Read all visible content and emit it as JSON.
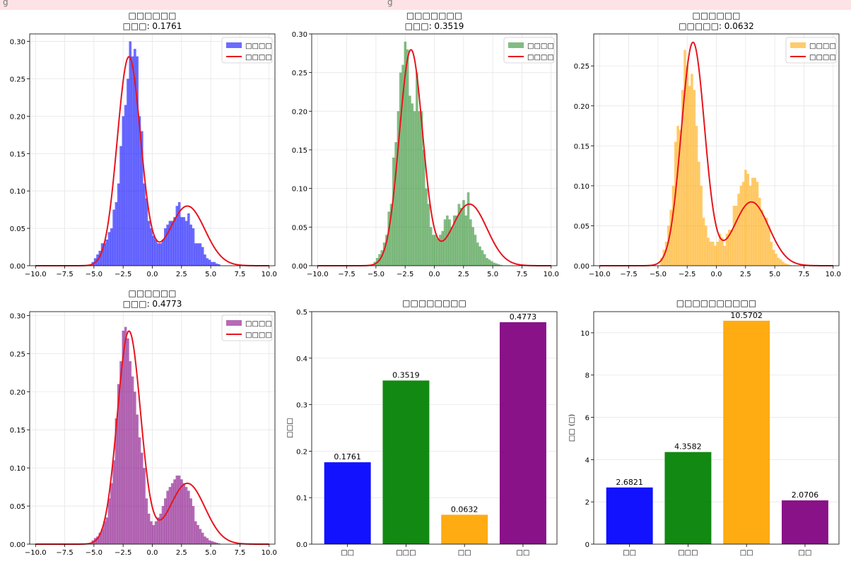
{
  "banner": {
    "left": "g",
    "right": "g"
  },
  "chart_data": [
    {
      "type": "histogram",
      "title": "□□□□□□",
      "subtitle": "□□□: 0.1761",
      "hist_color": "#0000ff",
      "hist_label": "□□□□",
      "pdf_label": "□□□□",
      "line_color": "#e8141e",
      "xlim": [
        -10.5,
        10.5
      ],
      "ylim": [
        0,
        0.31
      ],
      "xticks": [
        -10,
        -7.5,
        -5,
        -2.5,
        0,
        2.5,
        5,
        7.5,
        10
      ],
      "xtick_labels": [
        "−10.0",
        "−7.5",
        "−5.0",
        "−2.5",
        "0.0",
        "2.5",
        "5.0",
        "7.5",
        "10.0"
      ],
      "yticks": [
        0,
        0.05,
        0.1,
        0.15,
        0.2,
        0.25,
        0.3
      ],
      "ytick_labels": [
        "0.00",
        "0.05",
        "0.10",
        "0.15",
        "0.20",
        "0.25",
        "0.30"
      ],
      "bin_start": -5.2,
      "bin_width": 0.2,
      "values": [
        0.005,
        0.01,
        0.015,
        0.02,
        0.03,
        0.03,
        0.035,
        0.045,
        0.05,
        0.075,
        0.085,
        0.11,
        0.16,
        0.2,
        0.215,
        0.25,
        0.3,
        0.28,
        0.29,
        0.28,
        0.2,
        0.18,
        0.11,
        0.09,
        0.06,
        0.05,
        0.04,
        0.035,
        0.03,
        0.03,
        0.035,
        0.05,
        0.055,
        0.06,
        0.06,
        0.065,
        0.08,
        0.085,
        0.065,
        0.065,
        0.06,
        0.07,
        0.055,
        0.05,
        0.03,
        0.03,
        0.03,
        0.025,
        0.015,
        0.01,
        0.008,
        0.005,
        0.005,
        0.003,
        0.002
      ]
    },
    {
      "type": "histogram",
      "title": "□□□□□□□",
      "subtitle": "□□□: 0.3519",
      "hist_color": "#2a8c2a",
      "hist_label": "□□□□",
      "pdf_label": "□□□□",
      "line_color": "#e8141e",
      "xlim": [
        -10.5,
        10.5
      ],
      "ylim": [
        0,
        0.3
      ],
      "xticks": [
        -10,
        -7.5,
        -5,
        -2.5,
        0,
        2.5,
        5,
        7.5,
        10
      ],
      "xtick_labels": [
        "−10.0",
        "−7.5",
        "−5.0",
        "−2.5",
        "0.0",
        "2.5",
        "5.0",
        "7.5",
        "10.0"
      ],
      "yticks": [
        0,
        0.05,
        0.1,
        0.15,
        0.2,
        0.25,
        0.3
      ],
      "ytick_labels": [
        "0.00",
        "0.05",
        "0.10",
        "0.15",
        "0.20",
        "0.25",
        "0.30"
      ],
      "bin_start": -5.2,
      "bin_width": 0.2,
      "values": [
        0.005,
        0.01,
        0.015,
        0.02,
        0.03,
        0.04,
        0.07,
        0.08,
        0.14,
        0.16,
        0.2,
        0.25,
        0.26,
        0.29,
        0.28,
        0.22,
        0.21,
        0.2,
        0.25,
        0.2,
        0.2,
        0.15,
        0.1,
        0.08,
        0.05,
        0.04,
        0.04,
        0.035,
        0.04,
        0.045,
        0.06,
        0.065,
        0.06,
        0.05,
        0.065,
        0.065,
        0.08,
        0.075,
        0.085,
        0.065,
        0.095,
        0.06,
        0.05,
        0.04,
        0.03,
        0.025,
        0.02,
        0.015,
        0.01,
        0.008,
        0.006,
        0.004,
        0.003,
        0.002,
        0.001
      ]
    },
    {
      "type": "histogram",
      "title": "□□□□□□",
      "subtitle": "□□□□□: 0.0632",
      "hist_color": "#ffa500",
      "hist_label": "□□□□",
      "pdf_label": "□□□□",
      "line_color": "#e8141e",
      "xlim": [
        -10.5,
        10.5
      ],
      "ylim": [
        0,
        0.29
      ],
      "xticks": [
        -10,
        -7.5,
        -5,
        -2.5,
        0,
        2.5,
        5,
        7.5,
        10
      ],
      "xtick_labels": [
        "−10.0",
        "−7.5",
        "−5.0",
        "−2.5",
        "0.0",
        "2.5",
        "5.0",
        "7.5",
        "10.0"
      ],
      "yticks": [
        0,
        0.05,
        0.1,
        0.15,
        0.2,
        0.25
      ],
      "ytick_labels": [
        "0.00",
        "0.05",
        "0.10",
        "0.15",
        "0.20",
        "0.25"
      ],
      "bin_start": -4.8,
      "bin_width": 0.2,
      "values": [
        0.01,
        0.02,
        0.03,
        0.05,
        0.07,
        0.1,
        0.155,
        0.175,
        0.17,
        0.22,
        0.27,
        0.25,
        0.225,
        0.24,
        0.22,
        0.175,
        0.13,
        0.1,
        0.06,
        0.05,
        0.035,
        0.03,
        0.03,
        0.025,
        0.03,
        0.04,
        0.035,
        0.025,
        0.04,
        0.045,
        0.045,
        0.075,
        0.075,
        0.09,
        0.1,
        0.105,
        0.12,
        0.115,
        0.1,
        0.11,
        0.11,
        0.105,
        0.085,
        0.07,
        0.06,
        0.06,
        0.05,
        0.03,
        0.02,
        0.015,
        0.01,
        0.008,
        0.005,
        0.003,
        0.002,
        0.001
      ]
    },
    {
      "type": "histogram",
      "title": "□□□□□□",
      "subtitle": "□□□: 0.4773",
      "hist_color": "#800080",
      "hist_label": "□□□□",
      "pdf_label": "□□□□",
      "line_color": "#e8141e",
      "xlim": [
        -10.5,
        10.5
      ],
      "ylim": [
        0,
        0.305
      ],
      "xticks": [
        -10,
        -7.5,
        -5,
        -2.5,
        0,
        2.5,
        5,
        7.5,
        10
      ],
      "xtick_labels": [
        "−10.0",
        "−7.5",
        "−5.0",
        "−2.5",
        "0.0",
        "2.5",
        "5.0",
        "7.5",
        "10.0"
      ],
      "yticks": [
        0,
        0.05,
        0.1,
        0.15,
        0.2,
        0.25,
        0.3
      ],
      "ytick_labels": [
        "0.00",
        "0.05",
        "0.10",
        "0.15",
        "0.20",
        "0.25",
        "0.30"
      ],
      "bin_start": -5.2,
      "bin_width": 0.2,
      "values": [
        0.005,
        0.008,
        0.01,
        0.015,
        0.02,
        0.03,
        0.035,
        0.06,
        0.08,
        0.11,
        0.165,
        0.21,
        0.24,
        0.28,
        0.285,
        0.27,
        0.24,
        0.22,
        0.2,
        0.17,
        0.14,
        0.12,
        0.1,
        0.06,
        0.04,
        0.03,
        0.025,
        0.03,
        0.035,
        0.04,
        0.05,
        0.06,
        0.07,
        0.075,
        0.08,
        0.085,
        0.09,
        0.09,
        0.085,
        0.08,
        0.075,
        0.07,
        0.06,
        0.05,
        0.03,
        0.025,
        0.02,
        0.015,
        0.01,
        0.008,
        0.005,
        0.004,
        0.003,
        0.002,
        0.001
      ]
    },
    {
      "type": "bar",
      "title": "□□□□□□□□",
      "ylabel": "□□□",
      "categories": [
        "□□",
        "□□□",
        "□□",
        "□□"
      ],
      "values": [
        0.1761,
        0.3519,
        0.0632,
        0.4773
      ],
      "value_labels": [
        "0.1761",
        "0.3519",
        "0.0632",
        "0.4773"
      ],
      "colors": [
        "#0000ff",
        "#008000",
        "#ffa500",
        "#800080"
      ],
      "ylim": [
        0,
        0.5
      ],
      "yticks": [
        0,
        0.1,
        0.2,
        0.3,
        0.4,
        0.5
      ],
      "ytick_labels": [
        "0.0",
        "0.1",
        "0.2",
        "0.3",
        "0.4",
        "0.5"
      ]
    },
    {
      "type": "bar",
      "title": "□□□□□□□□□□",
      "ylabel": "□□ (□)",
      "categories": [
        "□□",
        "□□□",
        "□□",
        "□□"
      ],
      "values": [
        2.6821,
        4.3582,
        10.5702,
        2.0706
      ],
      "value_labels": [
        "2.6821",
        "4.3582",
        "10.5702",
        "2.0706"
      ],
      "colors": [
        "#0000ff",
        "#008000",
        "#ffa500",
        "#800080"
      ],
      "ylim": [
        0,
        11
      ],
      "yticks": [
        0,
        2,
        4,
        6,
        8,
        10
      ],
      "ytick_labels": [
        "0",
        "2",
        "4",
        "6",
        "8",
        "10"
      ]
    }
  ]
}
